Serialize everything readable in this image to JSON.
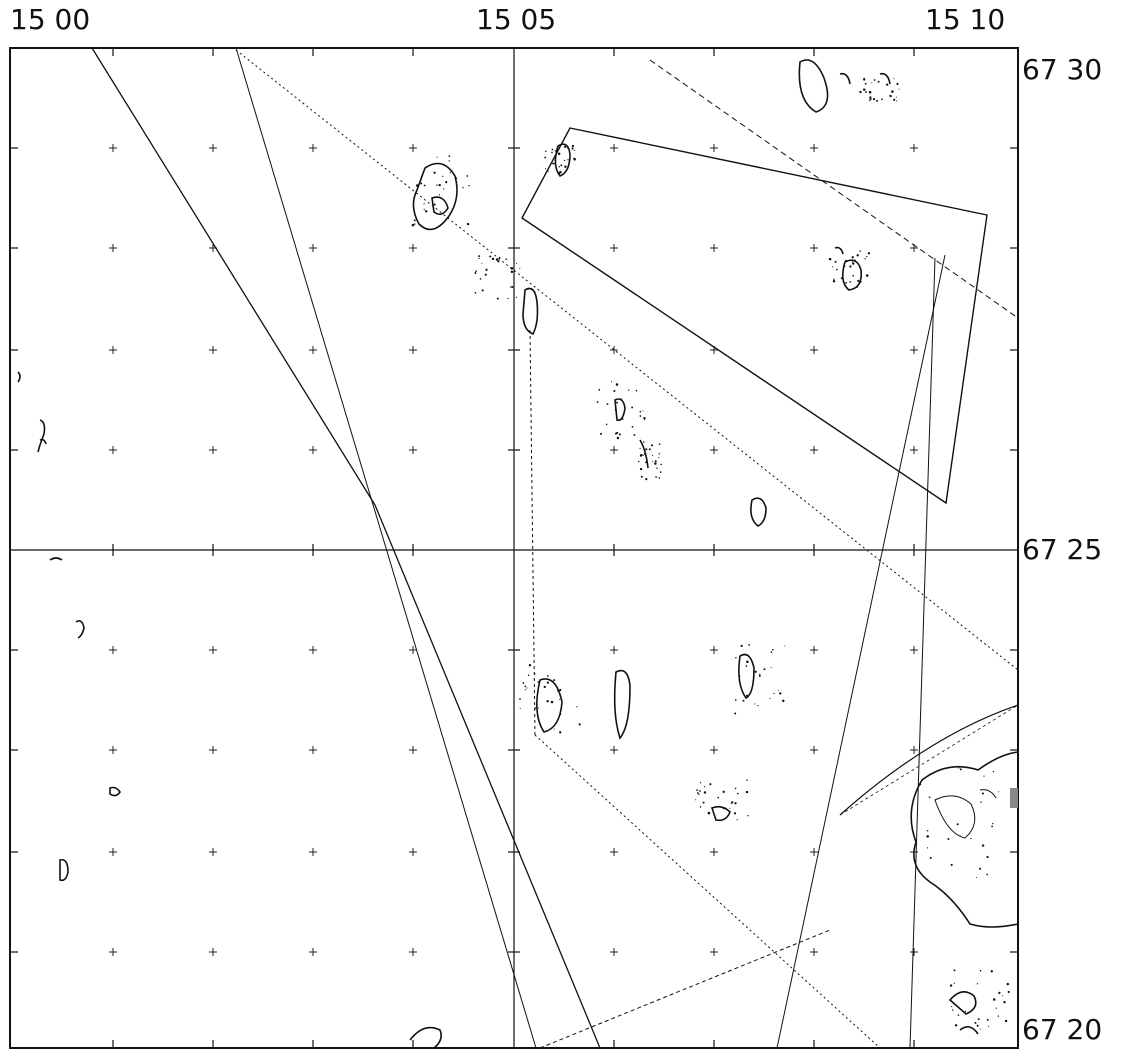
{
  "map": {
    "longitude_labels": [
      "15 00",
      "15 05",
      "15 10"
    ],
    "latitude_labels": [
      "67 30",
      "67 25",
      "67 20"
    ],
    "colors": {
      "ink": "#111111",
      "background": "#ffffff",
      "accent": "#888888"
    }
  }
}
